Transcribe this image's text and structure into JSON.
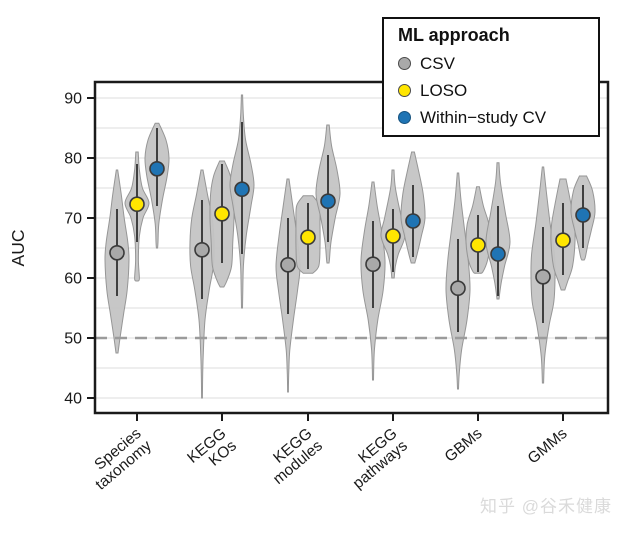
{
  "watermark": "知乎 @谷禾健康",
  "legend": {
    "title": "ML approach",
    "items": [
      {
        "id": "csv",
        "label": "CSV",
        "color": "#a9a9a9",
        "border": "#4a4a4a"
      },
      {
        "id": "loso",
        "label": "LOSO",
        "color": "#ffe600",
        "border": "#4a4a4a"
      },
      {
        "id": "within-study-cv",
        "label": "Within−study CV",
        "color": "#1f74b4",
        "border": "#17537f"
      }
    ]
  },
  "chart_data": {
    "type": "violin",
    "title": "",
    "xlabel": "",
    "ylabel": "AUC",
    "ylim": [
      37.5,
      92.5
    ],
    "y_ticks": [
      40,
      50,
      60,
      70,
      80,
      90
    ],
    "y_gridlines": [
      40,
      45,
      50,
      55,
      60,
      65,
      70,
      75,
      80,
      85,
      90
    ],
    "grid": "on",
    "legend_position": "top-right",
    "reference_line": {
      "value": 50,
      "style": "dashed",
      "color": "#9b9b9b"
    },
    "categories": [
      "Species taxonomy",
      "KEGG KOs",
      "KEGG modules",
      "KEGG pathways",
      "GBMs",
      "GMMs"
    ],
    "category_label_lines": [
      [
        "Species",
        "taxonomy"
      ],
      [
        "KEGG",
        "KOs"
      ],
      [
        "KEGG",
        "modules"
      ],
      [
        "KEGG",
        "pathways"
      ],
      [
        "GBMs"
      ],
      [
        "GMMs"
      ]
    ],
    "violin_fill": "#c4c4c4",
    "violin_stroke": "#969696",
    "whisker_color": "#3f3f3f",
    "series": [
      {
        "name": "CSV",
        "id": "csv",
        "color": "#a9a9a9",
        "median_auc": [
          64.2,
          64.7,
          62.2,
          62.3,
          58.3,
          60.2
        ],
        "line_low": [
          57,
          56.5,
          54,
          55,
          51,
          52.5
        ],
        "line_high": [
          71.5,
          73,
          70,
          69.5,
          66.5,
          68.5
        ],
        "violin_low": [
          47.5,
          40,
          41,
          43,
          41.5,
          42.5
        ],
        "violin_high": [
          78,
          78,
          76.5,
          76,
          77.5,
          78.5
        ],
        "width_profiles": [
          [
            [
              78,
              0.06
            ],
            [
              74,
              0.35
            ],
            [
              70,
              0.6
            ],
            [
              66,
              0.9
            ],
            [
              63,
              1
            ],
            [
              58,
              0.85
            ],
            [
              54,
              0.55
            ],
            [
              50,
              0.25
            ],
            [
              47.5,
              0.08
            ]
          ],
          [
            [
              78,
              0.08
            ],
            [
              74,
              0.45
            ],
            [
              70,
              0.85
            ],
            [
              66,
              1
            ],
            [
              62,
              0.95
            ],
            [
              58,
              0.6
            ],
            [
              53,
              0.25
            ],
            [
              47,
              0.1
            ],
            [
              43,
              0.05
            ],
            [
              40,
              0.03
            ]
          ],
          [
            [
              76.5,
              0.08
            ],
            [
              72,
              0.4
            ],
            [
              67,
              0.75
            ],
            [
              62,
              1
            ],
            [
              58,
              0.8
            ],
            [
              53,
              0.45
            ],
            [
              48,
              0.15
            ],
            [
              44,
              0.06
            ],
            [
              41,
              0.03
            ]
          ],
          [
            [
              76,
              0.08
            ],
            [
              72,
              0.35
            ],
            [
              68,
              0.7
            ],
            [
              63,
              1
            ],
            [
              58,
              0.85
            ],
            [
              53,
              0.4
            ],
            [
              48,
              0.12
            ],
            [
              43,
              0.04
            ]
          ],
          [
            [
              77.5,
              0.06
            ],
            [
              73,
              0.25
            ],
            [
              68,
              0.55
            ],
            [
              63,
              0.85
            ],
            [
              58,
              1
            ],
            [
              53,
              0.75
            ],
            [
              48,
              0.3
            ],
            [
              44,
              0.1
            ],
            [
              41.5,
              0.04
            ]
          ],
          [
            [
              78.5,
              0.06
            ],
            [
              74,
              0.3
            ],
            [
              69,
              0.6
            ],
            [
              64,
              0.95
            ],
            [
              60,
              1
            ],
            [
              56,
              0.9
            ],
            [
              52,
              0.5
            ],
            [
              47,
              0.15
            ],
            [
              42.5,
              0.05
            ]
          ]
        ]
      },
      {
        "name": "LOSO",
        "id": "loso",
        "color": "#ffe600",
        "median_auc": [
          72.3,
          70.7,
          66.8,
          67.0,
          65.5,
          66.3
        ],
        "line_low": [
          66,
          62.5,
          61.5,
          61,
          61,
          60.5
        ],
        "line_high": [
          79,
          79,
          72.5,
          71.5,
          70.5,
          72.5
        ],
        "violin_low": [
          59.5,
          58.5,
          60.8,
          60,
          60.8,
          58
        ],
        "violin_high": [
          81,
          79.5,
          73.7,
          78,
          75.2,
          76.5
        ],
        "width_profiles": [
          [
            [
              81,
              0.1
            ],
            [
              78,
              0.2
            ],
            [
              75,
              0.45
            ],
            [
              72.5,
              1
            ],
            [
              70,
              0.5
            ],
            [
              67,
              0.2
            ],
            [
              63,
              0.12
            ],
            [
              60,
              0.2
            ],
            [
              59.5,
              0.1
            ]
          ],
          [
            [
              79.5,
              0.2
            ],
            [
              77,
              0.7
            ],
            [
              74,
              0.95
            ],
            [
              70,
              1
            ],
            [
              66,
              0.9
            ],
            [
              62,
              0.8
            ],
            [
              59.5,
              0.4
            ],
            [
              58.5,
              0.15
            ]
          ],
          [
            [
              73.7,
              0.4
            ],
            [
              72,
              0.95
            ],
            [
              69,
              1
            ],
            [
              65,
              1
            ],
            [
              62,
              0.9
            ],
            [
              60.8,
              0.4
            ]
          ],
          [
            [
              78,
              0.08
            ],
            [
              75,
              0.2
            ],
            [
              70,
              0.7
            ],
            [
              67,
              1
            ],
            [
              64,
              0.45
            ],
            [
              62,
              0.2
            ],
            [
              60,
              0.1
            ]
          ],
          [
            [
              75.2,
              0.12
            ],
            [
              72,
              0.45
            ],
            [
              69,
              0.9
            ],
            [
              66,
              1
            ],
            [
              63,
              0.8
            ],
            [
              61,
              0.4
            ],
            [
              60.8,
              0.15
            ]
          ],
          [
            [
              76.5,
              0.25
            ],
            [
              73,
              0.6
            ],
            [
              69,
              0.95
            ],
            [
              66,
              1
            ],
            [
              62,
              0.8
            ],
            [
              59.5,
              0.4
            ],
            [
              58,
              0.15
            ]
          ]
        ]
      },
      {
        "name": "Within−study CV",
        "id": "within-study-cv",
        "color": "#1f74b4",
        "median_auc": [
          78.2,
          74.8,
          72.8,
          69.5,
          64.0,
          70.5
        ],
        "line_low": [
          72,
          64,
          66,
          63.5,
          57,
          65
        ],
        "line_high": [
          85,
          86,
          80.5,
          75.5,
          72,
          75.5
        ],
        "violin_low": [
          65,
          55,
          62.5,
          62.5,
          56.5,
          63
        ],
        "violin_high": [
          85.8,
          90.5,
          85.5,
          81,
          79.2,
          77
        ],
        "width_profiles": [
          [
            [
              85.8,
              0.15
            ],
            [
              83,
              0.75
            ],
            [
              80,
              1
            ],
            [
              77,
              0.85
            ],
            [
              73,
              0.45
            ],
            [
              69,
              0.15
            ],
            [
              66,
              0.08
            ],
            [
              65,
              0.05
            ]
          ],
          [
            [
              90.5,
              0.05
            ],
            [
              87,
              0.12
            ],
            [
              83,
              0.3
            ],
            [
              79,
              0.75
            ],
            [
              75.5,
              1
            ],
            [
              72,
              0.75
            ],
            [
              67,
              0.35
            ],
            [
              62,
              0.12
            ],
            [
              57,
              0.06
            ],
            [
              55,
              0.04
            ]
          ],
          [
            [
              85.5,
              0.1
            ],
            [
              82,
              0.3
            ],
            [
              78,
              0.75
            ],
            [
              74,
              1
            ],
            [
              70,
              0.6
            ],
            [
              66,
              0.25
            ],
            [
              63,
              0.12
            ],
            [
              62.5,
              0.08
            ]
          ],
          [
            [
              81,
              0.12
            ],
            [
              78,
              0.45
            ],
            [
              74,
              0.85
            ],
            [
              70,
              1
            ],
            [
              67,
              0.7
            ],
            [
              64,
              0.35
            ],
            [
              62.5,
              0.15
            ]
          ],
          [
            [
              79.2,
              0.08
            ],
            [
              76,
              0.2
            ],
            [
              71,
              0.6
            ],
            [
              66,
              1
            ],
            [
              62,
              0.55
            ],
            [
              59,
              0.25
            ],
            [
              56.5,
              0.08
            ]
          ],
          [
            [
              77,
              0.3
            ],
            [
              74.5,
              0.8
            ],
            [
              71,
              1
            ],
            [
              68,
              0.7
            ],
            [
              65.5,
              0.4
            ],
            [
              63.5,
              0.2
            ],
            [
              63,
              0.1
            ]
          ]
        ]
      }
    ]
  }
}
